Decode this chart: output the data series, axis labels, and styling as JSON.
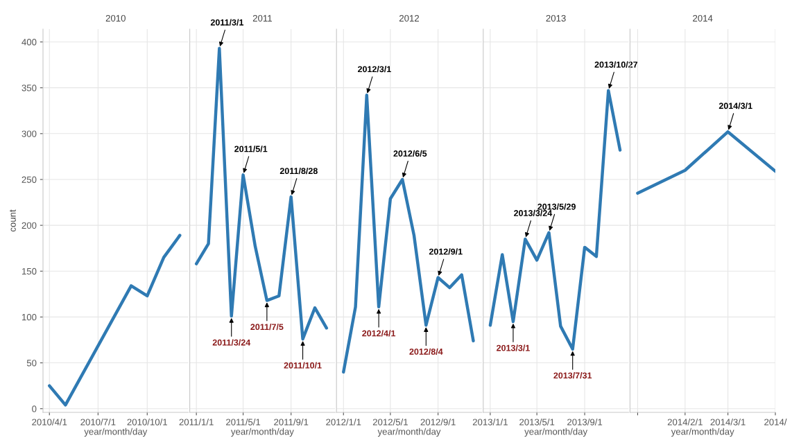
{
  "chart_data": [
    {
      "type": "line",
      "title": "2010",
      "xlabel": "year/month/day",
      "ylabel": "count",
      "color": "#2f7ab3",
      "grid": true,
      "x": [
        "2010-04-01",
        "2010-05-01",
        "2010-09-01",
        "2010-10-01",
        "2010-11-01",
        "2010-12-01"
      ],
      "values": [
        25,
        4,
        134,
        123,
        165,
        189
      ],
      "xlim": [
        "2010-03-20",
        "2010-12-17"
      ],
      "ylim": [
        -4,
        414
      ],
      "yticks": [
        0,
        50,
        100,
        150,
        200,
        250,
        300,
        350,
        400
      ],
      "xticks": [
        {
          "value": "2010-04-01",
          "label": "2010/4/1"
        },
        {
          "value": "2010-07-01",
          "label": "2010/7/1"
        },
        {
          "value": "2010-10-01",
          "label": "2010/10/1"
        }
      ]
    },
    {
      "type": "line",
      "title": "2011",
      "xlabel": "year/month/day",
      "color": "#2f7ab3",
      "grid": true,
      "tick_labels": "x",
      "x": [
        "2011-01-01",
        "2011-02-01",
        "2011-03-01",
        "2011-04-01",
        "2011-05-01",
        "2011-06-01",
        "2011-07-01",
        "2011-08-01",
        "2011-09-01",
        "2011-10-01",
        "2011-11-01",
        "2011-12-01"
      ],
      "values": [
        158,
        180,
        393,
        101,
        255,
        177,
        118,
        123,
        231,
        76,
        110,
        88
      ],
      "xlim": [
        "2010-12-15",
        "2011-12-23"
      ],
      "ylim": [
        -4,
        414
      ],
      "yticks": [
        0,
        50,
        100,
        150,
        200,
        250,
        300,
        350,
        400
      ],
      "xticks": [
        {
          "value": "2011-01-01",
          "label": "2011/1/1"
        },
        {
          "value": "2011-05-01",
          "label": "2011/5/1"
        },
        {
          "value": "2011-09-01",
          "label": "2011/9/1"
        }
      ],
      "annotations": [
        {
          "text": "2011/3/1",
          "x": "2011-03-01",
          "y": 393
        },
        {
          "text": "2011/3/24",
          "x": "2011-04-01",
          "y": 101
        },
        {
          "text": "2011/5/1",
          "x": "2011-05-01",
          "y": 255
        },
        {
          "text": "2011/7/5",
          "x": "2011-07-01",
          "y": 118
        },
        {
          "text": "2011/8/28",
          "x": "2011-09-01",
          "y": 231
        },
        {
          "text": "2011/10/1",
          "x": "2011-10-01",
          "y": 76
        }
      ]
    },
    {
      "type": "line",
      "title": "2012",
      "xlabel": "year/month/day",
      "color": "#2f7ab3",
      "grid": true,
      "tick_labels": "x",
      "x": [
        "2012-01-01",
        "2012-02-01",
        "2012-03-01",
        "2012-04-01",
        "2012-05-01",
        "2012-06-01",
        "2012-07-01",
        "2012-08-01",
        "2012-09-01",
        "2012-10-01",
        "2012-11-01",
        "2012-12-01"
      ],
      "values": [
        40,
        111,
        342,
        111,
        229,
        250,
        189,
        91,
        143,
        132,
        146,
        74
      ],
      "xlim": [
        "2011-12-14",
        "2012-12-23"
      ],
      "ylim": [
        -4,
        414
      ],
      "yticks": [
        0,
        50,
        100,
        150,
        200,
        250,
        300,
        350,
        400
      ],
      "xticks": [
        {
          "value": "2012-01-01",
          "label": "2012/1/1"
        },
        {
          "value": "2012-05-01",
          "label": "2012/5/1"
        },
        {
          "value": "2012-09-01",
          "label": "2012/9/1"
        }
      ],
      "annotations": [
        {
          "text": "2012/3/1",
          "x": "2012-03-01",
          "y": 342
        },
        {
          "text": "2012/4/1",
          "x": "2012-04-01",
          "y": 111
        },
        {
          "text": "2012/6/5",
          "x": "2012-06-01",
          "y": 250
        },
        {
          "text": "2012/8/4",
          "x": "2012-08-01",
          "y": 91
        },
        {
          "text": "2012/9/1",
          "x": "2012-09-01",
          "y": 143
        }
      ]
    },
    {
      "type": "line",
      "title": "2013",
      "xlabel": "year/month/day",
      "color": "#2f7ab3",
      "grid": true,
      "tick_labels": "x",
      "x": [
        "2013-01-01",
        "2013-02-01",
        "2013-03-01",
        "2013-04-01",
        "2013-05-01",
        "2013-06-01",
        "2013-07-01",
        "2013-08-01",
        "2013-09-01",
        "2013-10-01",
        "2013-11-01",
        "2013-12-01"
      ],
      "values": [
        91,
        168,
        95,
        185,
        162,
        192,
        90,
        65,
        176,
        166,
        347,
        282
      ],
      "xlim": [
        "2012-12-14",
        "2013-12-23"
      ],
      "ylim": [
        -4,
        414
      ],
      "yticks": [
        0,
        50,
        100,
        150,
        200,
        250,
        300,
        350,
        400
      ],
      "xticks": [
        {
          "value": "2013-01-01",
          "label": "2013/1/1"
        },
        {
          "value": "2013-05-01",
          "label": "2013/5/1"
        },
        {
          "value": "2013-09-01",
          "label": "2013/9/1"
        }
      ],
      "annotations": [
        {
          "text": "2013/3/1",
          "x": "2013-03-01",
          "y": 95
        },
        {
          "text": "2013/3/24",
          "x": "2013-04-01",
          "y": 185
        },
        {
          "text": "2013/5/29",
          "x": "2013-06-01",
          "y": 192
        },
        {
          "text": "2013/7/31",
          "x": "2013-08-01",
          "y": 65
        },
        {
          "text": "2013/10/27",
          "x": "2013-11-01",
          "y": 347
        }
      ]
    },
    {
      "type": "line",
      "title": "2014",
      "xlabel": "year/month/day",
      "color": "#2f7ab3",
      "grid": true,
      "tick_labels": "x",
      "x": [
        "2014-01-01",
        "2014-02-01",
        "2014-03-01",
        "2014-04-01"
      ],
      "values": [
        235,
        260,
        302,
        259
      ],
      "xlim": [
        "2013-12-27",
        "2014-04-01"
      ],
      "ylim": [
        -4,
        414
      ],
      "yticks": [
        0,
        50,
        100,
        150,
        200,
        250,
        300,
        350,
        400
      ],
      "xticks": [
        {
          "value": "2014-01-01",
          "label": null
        },
        {
          "value": "2014-02-01",
          "label": "2014/2/1"
        },
        {
          "value": "2014-03-01",
          "label": "2014/3/1"
        },
        {
          "value": "2014-04-01",
          "label": "2014/"
        }
      ],
      "annotations": [
        {
          "text": "2014/3/1",
          "x": "2014-03-01",
          "y": 302
        }
      ]
    }
  ]
}
